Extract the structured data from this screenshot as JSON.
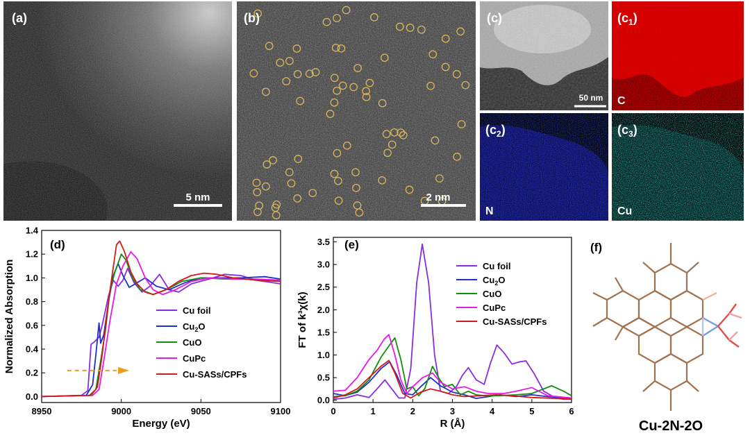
{
  "panels": {
    "a": {
      "label": "(a)",
      "scale": "5 nm"
    },
    "b": {
      "label": "(b)",
      "scale": "2 nm"
    },
    "c": {
      "label": "(c)",
      "scale": "50 nm"
    },
    "c1": {
      "label": "(c",
      "sub": "1",
      "close": ")",
      "element": "C"
    },
    "c2": {
      "label": "(c",
      "sub": "2",
      "close": ")",
      "element": "N"
    },
    "c3": {
      "label": "(c",
      "sub": "3",
      "close": ")",
      "element": "Cu"
    },
    "d": {
      "label": "(d)"
    },
    "e": {
      "label": "(e)"
    },
    "f": {
      "label": "(f)",
      "caption": "Cu-2N-2O"
    }
  },
  "chart_data": [
    {
      "id": "d",
      "type": "line",
      "title": "",
      "xlabel": "Energy (eV)",
      "ylabel": "Normalized Absorption",
      "xlim": [
        8950,
        9100
      ],
      "ylim": [
        -0.05,
        1.4
      ],
      "xticks": [
        "8950",
        "9000",
        "9050",
        "9100"
      ],
      "yticks": [
        "0.0",
        "0.2",
        "0.4",
        "0.6",
        "0.8",
        "1.0",
        "1.2",
        "1.4"
      ],
      "legend": [
        "Cu foil",
        "Cu2O",
        "CuO",
        "CuPc",
        "Cu-SASs/CPFs"
      ],
      "series": [
        {
          "name": "Cu foil",
          "color": "#8a2be2",
          "points": [
            [
              8950,
              0
            ],
            [
              8975,
              0.01
            ],
            [
              8979,
              0.05
            ],
            [
              8981,
              0.44
            ],
            [
              8983,
              0.46
            ],
            [
              8986,
              0.5
            ],
            [
              8988,
              0.6
            ],
            [
              8992,
              0.85
            ],
            [
              8995,
              0.98
            ],
            [
              8998,
              0.93
            ],
            [
              9001,
              0.98
            ],
            [
              9004,
              1.08
            ],
            [
              9008,
              0.96
            ],
            [
              9013,
              0.88
            ],
            [
              9018,
              0.93
            ],
            [
              9024,
              1.03
            ],
            [
              9030,
              0.9
            ],
            [
              9036,
              0.88
            ],
            [
              9044,
              0.95
            ],
            [
              9055,
              0.99
            ],
            [
              9065,
              1.03
            ],
            [
              9075,
              1.02
            ],
            [
              9085,
              0.98
            ],
            [
              9100,
              0.95
            ]
          ]
        },
        {
          "name": "Cu2O",
          "color": "#1a2fd0",
          "points": [
            [
              8950,
              0
            ],
            [
              8978,
              0.01
            ],
            [
              8982,
              0.1
            ],
            [
              8984,
              0.35
            ],
            [
              8986,
              0.62
            ],
            [
              8987,
              0.45
            ],
            [
              8989,
              0.52
            ],
            [
              8992,
              0.8
            ],
            [
              8995,
              1.02
            ],
            [
              8998,
              1.12
            ],
            [
              9001,
              1.02
            ],
            [
              9005,
              0.92
            ],
            [
              9010,
              0.96
            ],
            [
              9015,
              1.0
            ],
            [
              9022,
              0.93
            ],
            [
              9030,
              0.9
            ],
            [
              9040,
              0.96
            ],
            [
              9050,
              1.0
            ],
            [
              9060,
              1.0
            ],
            [
              9075,
              1.0
            ],
            [
              9090,
              1.01
            ],
            [
              9100,
              0.99
            ]
          ]
        },
        {
          "name": "CuO",
          "color": "#138a13",
          "points": [
            [
              8950,
              0
            ],
            [
              8980,
              0.01
            ],
            [
              8984,
              0.06
            ],
            [
              8987,
              0.3
            ],
            [
              8990,
              0.55
            ],
            [
              8993,
              0.9
            ],
            [
              8996,
              1.05
            ],
            [
              9000,
              1.2
            ],
            [
              9003,
              1.15
            ],
            [
              9007,
              1.0
            ],
            [
              9012,
              0.9
            ],
            [
              9020,
              0.86
            ],
            [
              9028,
              0.9
            ],
            [
              9038,
              0.97
            ],
            [
              9050,
              1.0
            ],
            [
              9065,
              0.99
            ],
            [
              9080,
              0.99
            ],
            [
              9100,
              0.98
            ]
          ]
        },
        {
          "name": "CuPc",
          "color": "#e818e8",
          "points": [
            [
              8950,
              0
            ],
            [
              8982,
              0.01
            ],
            [
              8986,
              0.06
            ],
            [
              8989,
              0.3
            ],
            [
              8993,
              0.65
            ],
            [
              8997,
              0.95
            ],
            [
              9001,
              1.1
            ],
            [
              9006,
              1.22
            ],
            [
              9010,
              1.16
            ],
            [
              9015,
              1.0
            ],
            [
              9020,
              0.9
            ],
            [
              9026,
              0.86
            ],
            [
              9034,
              0.9
            ],
            [
              9044,
              0.97
            ],
            [
              9055,
              1.0
            ],
            [
              9070,
              0.99
            ],
            [
              9085,
              0.99
            ],
            [
              9100,
              0.98
            ]
          ]
        },
        {
          "name": "Cu-SASs/CPFs",
          "color": "#d11a1a",
          "points": [
            [
              8950,
              0
            ],
            [
              8981,
              0.01
            ],
            [
              8985,
              0.08
            ],
            [
              8988,
              0.35
            ],
            [
              8991,
              0.7
            ],
            [
              8994,
              1.0
            ],
            [
              8997,
              1.28
            ],
            [
              8999,
              1.31
            ],
            [
              9002,
              1.22
            ],
            [
              9006,
              1.05
            ],
            [
              9010,
              0.95
            ],
            [
              9015,
              0.88
            ],
            [
              9020,
              0.86
            ],
            [
              9028,
              0.9
            ],
            [
              9036,
              0.97
            ],
            [
              9044,
              1.02
            ],
            [
              9052,
              1.04
            ],
            [
              9060,
              1.03
            ],
            [
              9070,
              1.0
            ],
            [
              9085,
              0.98
            ],
            [
              9100,
              0.97
            ]
          ]
        }
      ]
    },
    {
      "id": "e",
      "type": "line",
      "title": "",
      "xlabel": "R (Å)",
      "ylabel": "FT of k³χ(k)",
      "xlim": [
        0,
        6
      ],
      "ylim": [
        -0.05,
        3.6
      ],
      "xticks": [
        "0",
        "1",
        "2",
        "3",
        "4",
        "5",
        "6"
      ],
      "yticks": [
        "0.0",
        "0.5",
        "1.0",
        "1.5",
        "2.0",
        "2.5",
        "3.0",
        "3.5"
      ],
      "legend": [
        "Cu foil",
        "Cu2O",
        "CuO",
        "CuPc",
        "Cu-SASs/CPFs"
      ],
      "series": [
        {
          "name": "Cu foil",
          "color": "#8a2be2",
          "points": [
            [
              0,
              0.02
            ],
            [
              0.3,
              0.05
            ],
            [
              0.6,
              0.12
            ],
            [
              0.9,
              0.06
            ],
            [
              1.1,
              0.25
            ],
            [
              1.3,
              0.45
            ],
            [
              1.5,
              0.22
            ],
            [
              1.65,
              0.05
            ],
            [
              1.8,
              0.05
            ],
            [
              1.95,
              0.7
            ],
            [
              2.1,
              2.6
            ],
            [
              2.24,
              3.45
            ],
            [
              2.4,
              2.6
            ],
            [
              2.55,
              1.0
            ],
            [
              2.7,
              0.2
            ],
            [
              2.9,
              0.15
            ],
            [
              3.1,
              0.3
            ],
            [
              3.25,
              0.55
            ],
            [
              3.4,
              0.72
            ],
            [
              3.6,
              0.45
            ],
            [
              3.8,
              0.35
            ],
            [
              3.95,
              0.8
            ],
            [
              4.12,
              1.22
            ],
            [
              4.3,
              1.05
            ],
            [
              4.5,
              0.8
            ],
            [
              4.7,
              0.85
            ],
            [
              4.85,
              0.87
            ],
            [
              5.05,
              0.6
            ],
            [
              5.3,
              0.2
            ],
            [
              5.6,
              0.05
            ],
            [
              5.8,
              0.02
            ],
            [
              6,
              0.02
            ]
          ]
        },
        {
          "name": "Cu2O",
          "color": "#1a2fd0",
          "points": [
            [
              0,
              0.15
            ],
            [
              0.3,
              0.1
            ],
            [
              0.6,
              0.18
            ],
            [
              0.9,
              0.4
            ],
            [
              1.2,
              0.7
            ],
            [
              1.42,
              0.85
            ],
            [
              1.6,
              0.55
            ],
            [
              1.8,
              0.15
            ],
            [
              2.0,
              0.12
            ],
            [
              2.2,
              0.3
            ],
            [
              2.45,
              0.5
            ],
            [
              2.7,
              0.32
            ],
            [
              3.0,
              0.18
            ],
            [
              3.3,
              0.12
            ],
            [
              3.6,
              0.04
            ],
            [
              3.9,
              0.08
            ],
            [
              4.2,
              0.12
            ],
            [
              4.6,
              0.08
            ],
            [
              5.0,
              0.12
            ],
            [
              5.4,
              0.08
            ],
            [
              6,
              0.05
            ]
          ]
        },
        {
          "name": "CuO",
          "color": "#138a13",
          "points": [
            [
              0,
              0.08
            ],
            [
              0.3,
              0.1
            ],
            [
              0.6,
              0.2
            ],
            [
              0.9,
              0.45
            ],
            [
              1.2,
              0.95
            ],
            [
              1.4,
              1.2
            ],
            [
              1.55,
              1.38
            ],
            [
              1.7,
              0.9
            ],
            [
              1.85,
              0.25
            ],
            [
              2.0,
              0.3
            ],
            [
              2.15,
              0.1
            ],
            [
              2.3,
              0.25
            ],
            [
              2.5,
              0.75
            ],
            [
              2.65,
              0.5
            ],
            [
              2.8,
              0.3
            ],
            [
              3.0,
              0.35
            ],
            [
              3.2,
              0.12
            ],
            [
              3.4,
              0.2
            ],
            [
              3.6,
              0.12
            ],
            [
              3.8,
              0.1
            ],
            [
              4.2,
              0.1
            ],
            [
              4.6,
              0.12
            ],
            [
              5.0,
              0.15
            ],
            [
              5.5,
              0.32
            ],
            [
              5.8,
              0.2
            ],
            [
              6,
              0.1
            ]
          ]
        },
        {
          "name": "CuPc",
          "color": "#e818e8",
          "points": [
            [
              0,
              0.2
            ],
            [
              0.3,
              0.22
            ],
            [
              0.6,
              0.5
            ],
            [
              0.9,
              0.9
            ],
            [
              1.1,
              1.1
            ],
            [
              1.28,
              1.35
            ],
            [
              1.4,
              1.45
            ],
            [
              1.55,
              1.0
            ],
            [
              1.7,
              0.45
            ],
            [
              1.85,
              0.15
            ],
            [
              2.0,
              0.3
            ],
            [
              2.25,
              0.5
            ],
            [
              2.5,
              0.6
            ],
            [
              2.7,
              0.4
            ],
            [
              3.0,
              0.25
            ],
            [
              3.3,
              0.3
            ],
            [
              3.6,
              0.2
            ],
            [
              3.9,
              0.15
            ],
            [
              4.3,
              0.15
            ],
            [
              4.6,
              0.2
            ],
            [
              5.0,
              0.28
            ],
            [
              5.4,
              0.1
            ],
            [
              6,
              0.05
            ]
          ]
        },
        {
          "name": "Cu-SASs/CPFs",
          "color": "#d11a1a",
          "points": [
            [
              0,
              0.05
            ],
            [
              0.3,
              0.12
            ],
            [
              0.6,
              0.25
            ],
            [
              0.9,
              0.5
            ],
            [
              1.2,
              0.75
            ],
            [
              1.4,
              0.88
            ],
            [
              1.55,
              0.6
            ],
            [
              1.75,
              0.15
            ],
            [
              1.95,
              0.05
            ],
            [
              2.2,
              0.18
            ],
            [
              2.45,
              0.25
            ],
            [
              2.7,
              0.2
            ],
            [
              3.0,
              0.12
            ],
            [
              3.3,
              0.08
            ],
            [
              3.7,
              0.1
            ],
            [
              4.1,
              0.12
            ],
            [
              4.5,
              0.1
            ],
            [
              5.0,
              0.06
            ],
            [
              6,
              0.03
            ]
          ]
        }
      ]
    }
  ]
}
